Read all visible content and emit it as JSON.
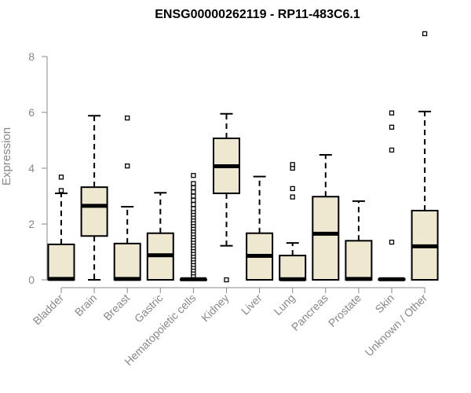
{
  "chart_data": {
    "type": "boxplot",
    "title": "ENSG00000262119 - RP11-483C6.1",
    "xlabel": "",
    "ylabel": "Expression",
    "ylim": [
      0,
      9
    ],
    "yticks": [
      0,
      2,
      4,
      6,
      8
    ],
    "grid": false,
    "legend": "none",
    "box_fill": "#efe8d0",
    "box_stroke": "#000000",
    "axis_color": "#888888",
    "categories": [
      "Bladder",
      "Brain",
      "Breast",
      "Gastric",
      "Hematopoietic cells",
      "Kidney",
      "Liver",
      "Lung",
      "Pancreas",
      "Prostate",
      "Skin",
      "Unknown / Other"
    ],
    "boxes": [
      {
        "category": "Bladder",
        "whisker_low": 0,
        "q1": 0,
        "median": 0.03,
        "q3": 1.27,
        "whisker_high": 3.1,
        "outliers": [
          3.2,
          3.68
        ]
      },
      {
        "category": "Brain",
        "whisker_low": 0,
        "q1": 1.57,
        "median": 2.65,
        "q3": 3.32,
        "whisker_high": 5.88,
        "outliers": []
      },
      {
        "category": "Breast",
        "whisker_low": 0,
        "q1": 0,
        "median": 0.03,
        "q3": 1.3,
        "whisker_high": 2.62,
        "outliers": [
          4.08,
          5.8
        ]
      },
      {
        "category": "Gastric",
        "whisker_low": 0,
        "q1": 0,
        "median": 0.88,
        "q3": 1.67,
        "whisker_high": 3.12,
        "outliers": []
      },
      {
        "category": "Hematopoietic cells",
        "whisker_low": 0,
        "q1": 0,
        "median": 0.02,
        "q3": 0.02,
        "whisker_high": 0.03,
        "outliers": [
          0.15,
          0.25,
          0.35,
          0.45,
          0.55,
          0.65,
          0.75,
          0.85,
          0.95,
          1.05,
          1.15,
          1.25,
          1.35,
          1.45,
          1.55,
          1.65,
          1.75,
          1.85,
          1.95,
          2.05,
          2.15,
          2.25,
          2.35,
          2.45,
          2.55,
          2.7,
          2.85,
          3.0,
          3.15,
          3.3,
          3.45,
          3.74
        ]
      },
      {
        "category": "Kidney",
        "whisker_low": 1.22,
        "q1": 3.1,
        "median": 4.07,
        "q3": 5.07,
        "whisker_high": 5.95,
        "outliers": [
          0
        ]
      },
      {
        "category": "Liver",
        "whisker_low": 0,
        "q1": 0,
        "median": 0.86,
        "q3": 1.67,
        "whisker_high": 3.7,
        "outliers": []
      },
      {
        "category": "Lung",
        "whisker_low": 0,
        "q1": 0,
        "median": 0.02,
        "q3": 0.87,
        "whisker_high": 1.32,
        "outliers": [
          2.97,
          3.27,
          4.0,
          4.13
        ]
      },
      {
        "category": "Pancreas",
        "whisker_low": 0,
        "q1": 0,
        "median": 1.65,
        "q3": 2.98,
        "whisker_high": 4.48,
        "outliers": []
      },
      {
        "category": "Prostate",
        "whisker_low": 0,
        "q1": 0,
        "median": 0.03,
        "q3": 1.4,
        "whisker_high": 2.82,
        "outliers": []
      },
      {
        "category": "Skin",
        "whisker_low": 0,
        "q1": 0,
        "median": 0.02,
        "q3": 0.03,
        "whisker_high": 0.04,
        "outliers": [
          1.35,
          4.65,
          5.47,
          5.98
        ]
      },
      {
        "category": "Unknown / Other",
        "whisker_low": 0,
        "q1": 0,
        "median": 1.2,
        "q3": 2.48,
        "whisker_high": 6.03,
        "outliers": [
          8.82
        ]
      }
    ]
  }
}
